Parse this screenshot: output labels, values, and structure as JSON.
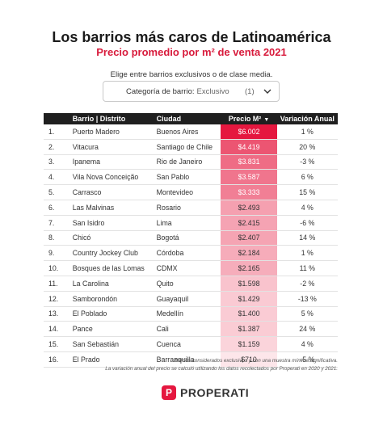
{
  "header": {
    "title": "Los barrios más caros de Latinoamérica",
    "subtitle": "Precio promedio por m² de venta 2021",
    "prompt": "Elige entre barrios exclusivos o de clase media."
  },
  "filter": {
    "label": "Categoría de barrio:",
    "value": "Exclusivo",
    "count": "(1)",
    "icon": "chevron-down-icon"
  },
  "table": {
    "columns": {
      "barrio": "Barrio | Distrito",
      "ciudad": "Ciudad",
      "precio": "Precio M²",
      "variacion": "Variación Anual"
    },
    "sort_arrow": "▼",
    "rows": [
      {
        "n": "1.",
        "barrio": "Puerto Madero",
        "ciudad": "Buenos Aires",
        "precio": "$6.002",
        "precio_value": 6002,
        "variacion": "1 %"
      },
      {
        "n": "2.",
        "barrio": "Vitacura",
        "ciudad": "Santiago de Chile",
        "precio": "$4.419",
        "precio_value": 4419,
        "variacion": "20 %"
      },
      {
        "n": "3.",
        "barrio": "Ipanema",
        "ciudad": "Rio de Janeiro",
        "precio": "$3.831",
        "precio_value": 3831,
        "variacion": "-3 %"
      },
      {
        "n": "4.",
        "barrio": "Vila Nova Conceição",
        "ciudad": "San Pablo",
        "precio": "$3.587",
        "precio_value": 3587,
        "variacion": "6 %"
      },
      {
        "n": "5.",
        "barrio": "Carrasco",
        "ciudad": "Montevideo",
        "precio": "$3.333",
        "precio_value": 3333,
        "variacion": "15 %"
      },
      {
        "n": "6.",
        "barrio": "Las Malvinas",
        "ciudad": "Rosario",
        "precio": "$2.493",
        "precio_value": 2493,
        "variacion": "4 %"
      },
      {
        "n": "7.",
        "barrio": "San Isidro",
        "ciudad": "Lima",
        "precio": "$2.415",
        "precio_value": 2415,
        "variacion": "-6 %"
      },
      {
        "n": "8.",
        "barrio": "Chicó",
        "ciudad": "Bogotá",
        "precio": "$2.407",
        "precio_value": 2407,
        "variacion": "14 %"
      },
      {
        "n": "9.",
        "barrio": "Country Jockey Club",
        "ciudad": "Córdoba",
        "precio": "$2.184",
        "precio_value": 2184,
        "variacion": "1 %"
      },
      {
        "n": "10.",
        "barrio": "Bosques de las Lomas",
        "ciudad": "CDMX",
        "precio": "$2.165",
        "precio_value": 2165,
        "variacion": "11 %"
      },
      {
        "n": "11.",
        "barrio": "La Carolina",
        "ciudad": "Quito",
        "precio": "$1.598",
        "precio_value": 1598,
        "variacion": "-2 %"
      },
      {
        "n": "12.",
        "barrio": "Samborondón",
        "ciudad": "Guayaquil",
        "precio": "$1.429",
        "precio_value": 1429,
        "variacion": "-13 %"
      },
      {
        "n": "13.",
        "barrio": "El Poblado",
        "ciudad": "Medellín",
        "precio": "$1.400",
        "precio_value": 1400,
        "variacion": "5 %"
      },
      {
        "n": "14.",
        "barrio": "Pance",
        "ciudad": "Cali",
        "precio": "$1.387",
        "precio_value": 1387,
        "variacion": "24 %"
      },
      {
        "n": "15.",
        "barrio": "San Sebastián",
        "ciudad": "Cuenca",
        "precio": "$1.159",
        "precio_value": 1159,
        "variacion": "4 %"
      },
      {
        "n": "16.",
        "barrio": "El Prado",
        "ciudad": "Barranquilla",
        "precio": "$710",
        "precio_value": 710,
        "variacion": "-5 %"
      }
    ]
  },
  "colors": {
    "price_high": "#e5173f",
    "price_low": "#fde6ea",
    "accent": "#d81b3c",
    "header_bg": "#1f1f1f"
  },
  "notes": {
    "line1": "Barrios considerados exclusivos y con una muestra mínima significativa.",
    "line2": "La variación anual del precio se calculó utilizando los datos recolectados por Properati en 2020 y 2021."
  },
  "brand": {
    "mark": "P",
    "name": "PROPERATI",
    "icon": "properati-logo-icon"
  }
}
